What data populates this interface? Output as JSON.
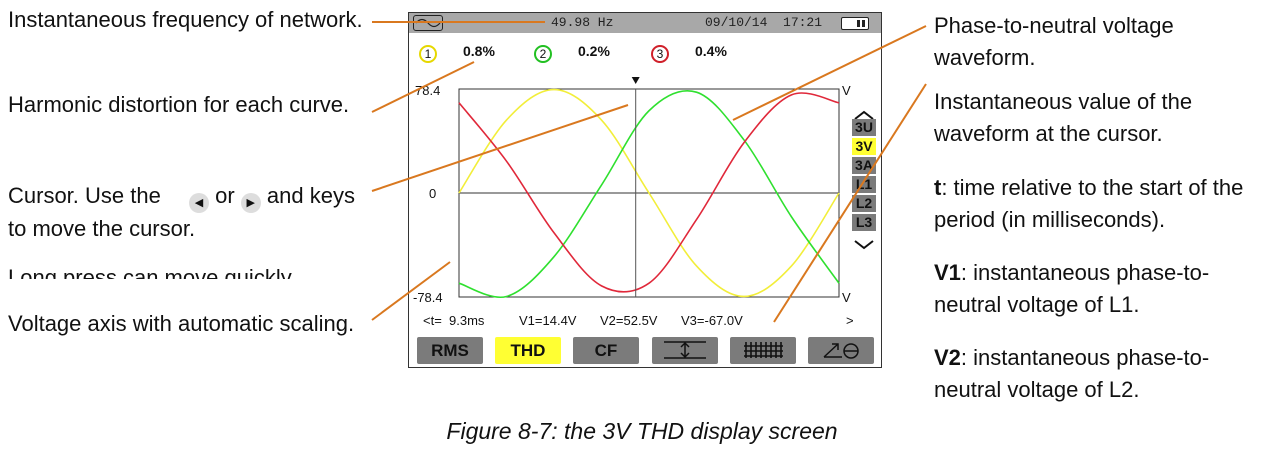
{
  "annotations_left": {
    "freq": "Instantaneous frequency of network.",
    "thd": "Harmonic distortion for each curve.",
    "cursor_a": "Cursor. Use the",
    "cursor_or": "or",
    "cursor_b": "and keys to move the cursor.",
    "long_press": "Long press can move quickly",
    "voltage_axis": "Voltage axis with automatic scaling."
  },
  "annotations_right": {
    "waveform": "Phase-to-neutral voltage waveform.",
    "inst_value": "Instantaneous value of the waveform at the cursor.",
    "t_key": "t",
    "t_desc": ": time relative to the start of the period (in milliseconds).",
    "v1_key": "V1",
    "v1_desc": ": instantaneous phase-to-neutral voltage of L1.",
    "v2_key": "V2",
    "v2_desc": ": instantaneous phase-to-neutral voltage of L2."
  },
  "screen": {
    "frequency": "49.98 Hz",
    "datetime": "09/10/14  17:21",
    "thd": [
      {
        "num": "1",
        "value": "0.8%",
        "color": "#e6d800"
      },
      {
        "num": "2",
        "value": "0.2%",
        "color": "#22c022"
      },
      {
        "num": "3",
        "value": "0.4%",
        "color": "#d0202a"
      }
    ],
    "y_max": "78.4",
    "y_zero": "0",
    "y_min": "-78.4",
    "unit_top": "V",
    "unit_bottom": "V",
    "readout": {
      "t": "<t=  9.3ms",
      "v1": "V1=14.4V",
      "v2": "V2=52.5V",
      "v3": "V3=-67.0V",
      "next": ">"
    },
    "side_tabs": [
      "3U",
      "3V",
      "3A",
      "L1",
      "L2",
      "L3"
    ],
    "side_active": "3V",
    "buttons": {
      "rms": "RMS",
      "thd": "THD",
      "cf": "CF"
    },
    "colors": {
      "l1": "#f2ee3a",
      "l2": "#2fe02f",
      "l3": "#e0283a",
      "highlight": "#ffff33",
      "button": "#7b7b7b",
      "bar": "#a8a8a8"
    }
  },
  "chart_data": {
    "type": "line",
    "title": "",
    "xlabel": "",
    "ylabel": "V",
    "ylim": [
      -78.4,
      78.4
    ],
    "cursor_t_ms": 9.3,
    "series": [
      {
        "name": "1",
        "t_ms": [
          0,
          2.5,
          5,
          7.5,
          10,
          12.5,
          15,
          17.5,
          20
        ],
        "values": [
          0,
          55,
          78,
          55,
          0,
          -55,
          -78,
          -55,
          0
        ]
      },
      {
        "name": "2",
        "t_ms": [
          0,
          2.5,
          5,
          7.5,
          10,
          12.5,
          15,
          17.5,
          20
        ],
        "values": [
          -68,
          -78,
          -48,
          6,
          62,
          76,
          40,
          -18,
          -68
        ]
      },
      {
        "name": "3",
        "t_ms": [
          0,
          2.5,
          5,
          7.5,
          10,
          12.5,
          15,
          17.5,
          20
        ],
        "values": [
          68,
          24,
          -30,
          -70,
          -68,
          -20,
          38,
          74,
          68
        ]
      }
    ]
  },
  "caption": "Figure 8-7: the 3V THD display screen"
}
